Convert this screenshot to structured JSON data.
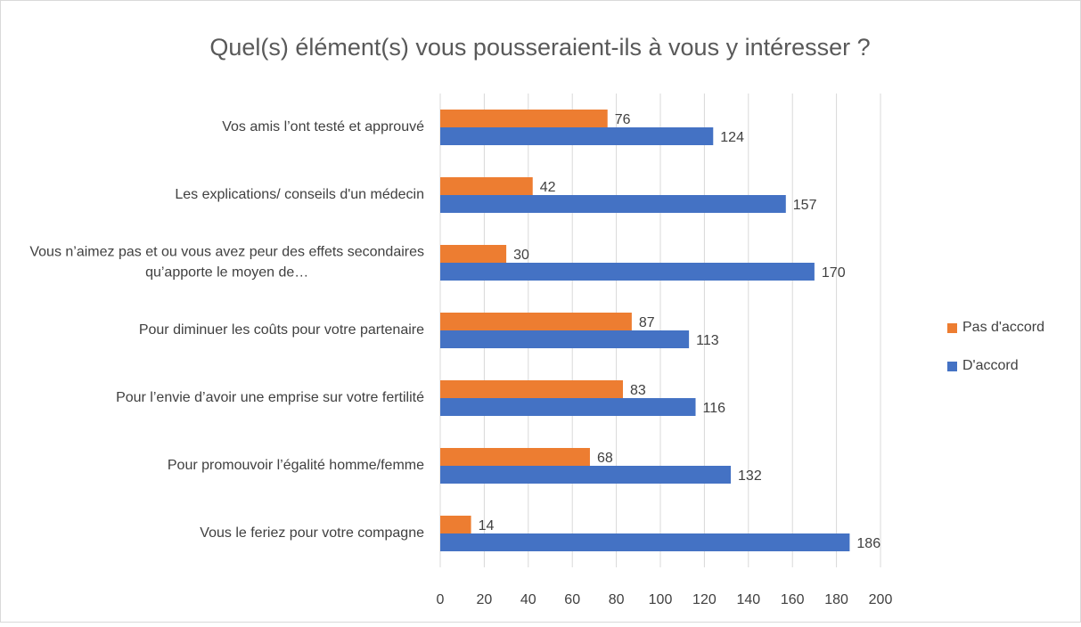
{
  "chart_data": {
    "type": "bar",
    "orientation": "horizontal",
    "title": "Quel(s) élément(s) vous pousseraient-ils à vous y intéresser ?",
    "categories": [
      "Vos amis l’ont testé et approuvé",
      "Les explications/ conseils d'un médecin",
      "Vous n’aimez pas et ou vous avez peur des effets secondaires qu’apporte le moyen de…",
      "Pour diminuer les coûts pour votre partenaire",
      "Pour l’envie d’avoir une emprise sur votre fertilité",
      "Pour promouvoir l’égalité homme/femme",
      "Vous le feriez pour votre compagne"
    ],
    "series": [
      {
        "name": "Pas d'accord",
        "color": "#ed7d31",
        "values": [
          76,
          42,
          30,
          87,
          83,
          68,
          14
        ]
      },
      {
        "name": "D'accord",
        "color": "#4472c4",
        "values": [
          124,
          157,
          170,
          113,
          116,
          132,
          186
        ]
      }
    ],
    "xlim": [
      0,
      200
    ],
    "xticks": [
      0,
      20,
      40,
      60,
      80,
      100,
      120,
      140,
      160,
      180,
      200
    ],
    "grid": true,
    "legend": "right"
  }
}
